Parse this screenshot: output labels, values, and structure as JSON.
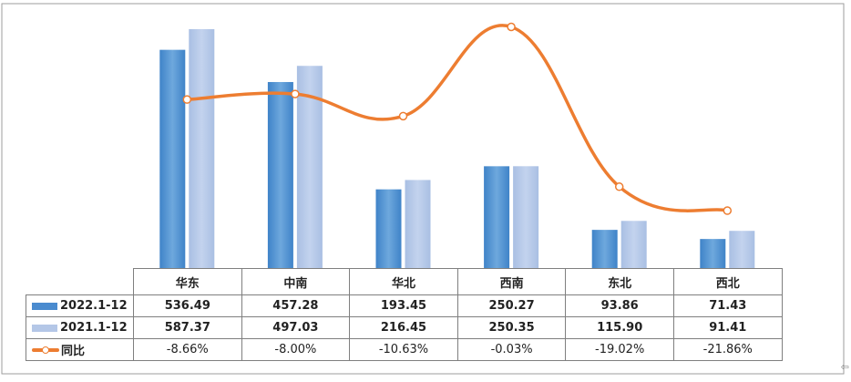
{
  "chart_data": {
    "type": "bar",
    "categories": [
      "华东",
      "中南",
      "华北",
      "西南",
      "东北",
      "西北"
    ],
    "series": [
      {
        "name": "2022.1-12",
        "type": "bar",
        "color": "#5b9bd5",
        "values": [
          536.49,
          457.28,
          193.45,
          250.27,
          93.86,
          71.43
        ],
        "labels": [
          "536.49",
          "457.28",
          "193.45",
          "250.27",
          "93.86",
          "71.43"
        ]
      },
      {
        "name": "2021.1-12",
        "type": "bar",
        "color": "#b4c7e7",
        "values": [
          587.37,
          497.03,
          216.45,
          250.35,
          115.9,
          91.41
        ],
        "labels": [
          "587.37",
          "497.03",
          "216.45",
          "250.35",
          "115.90",
          "91.41"
        ]
      },
      {
        "name": "同比",
        "type": "line",
        "color": "#ed7d31",
        "values": [
          -8.66,
          -8.0,
          -10.63,
          -0.03,
          -19.02,
          -21.86
        ],
        "labels": [
          "-8.66%",
          "-8.00%",
          "-10.63%",
          "-0.03%",
          "-19.02%",
          "-21.86%"
        ]
      }
    ],
    "ylim": [
      0,
      650
    ],
    "y2lim": [
      -25,
      1
    ],
    "grid": false,
    "legend": "data-table"
  },
  "icons": {
    "corner_marker": "expand-arrow-icon"
  }
}
